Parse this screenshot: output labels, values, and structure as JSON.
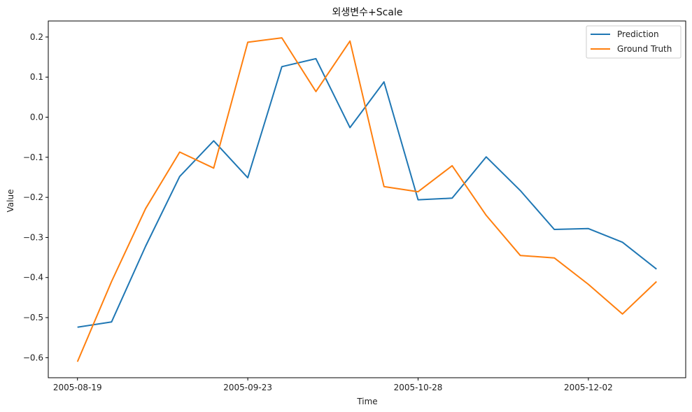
{
  "chart_data": {
    "type": "line",
    "title": "외생변수+Scale",
    "xlabel": "Time",
    "ylabel": "Value",
    "x": [
      "2005-08-19",
      "2005-08-26",
      "2005-09-02",
      "2005-09-09",
      "2005-09-16",
      "2005-09-23",
      "2005-09-30",
      "2005-10-07",
      "2005-10-14",
      "2005-10-21",
      "2005-10-28",
      "2005-11-04",
      "2005-11-11",
      "2005-11-18",
      "2005-11-25",
      "2005-12-02",
      "2005-12-09",
      "2005-12-16"
    ],
    "xticks": [
      "2005-08-19",
      "2005-09-23",
      "2005-10-28",
      "2005-12-02"
    ],
    "xlim": [
      "2005-08-13",
      "2005-12-22"
    ],
    "ylim": [
      -0.65,
      0.24
    ],
    "yticks": [
      0.2,
      0.1,
      0.0,
      -0.1,
      -0.2,
      -0.3,
      -0.4,
      -0.5,
      -0.6
    ],
    "ytick_labels": [
      "0.2",
      "0.1",
      "0.0",
      "−0.1",
      "−0.2",
      "−0.3",
      "−0.4",
      "−0.5",
      "−0.6"
    ],
    "grid": false,
    "legend_position": "top-right",
    "series": [
      {
        "name": "Prediction",
        "color": "#1f77b4",
        "values": [
          -0.524,
          -0.511,
          -0.322,
          -0.148,
          -0.059,
          -0.151,
          0.126,
          0.146,
          -0.026,
          0.088,
          -0.206,
          -0.202,
          -0.099,
          -0.183,
          -0.28,
          -0.278,
          -0.312,
          -0.379
        ]
      },
      {
        "name": "Ground Truth",
        "color": "#ff7f0e",
        "values": [
          -0.61,
          -0.41,
          -0.228,
          -0.087,
          -0.127,
          0.187,
          0.198,
          0.064,
          0.19,
          -0.173,
          -0.186,
          -0.121,
          -0.245,
          -0.345,
          -0.351,
          -0.417,
          -0.491,
          -0.41
        ]
      }
    ]
  }
}
